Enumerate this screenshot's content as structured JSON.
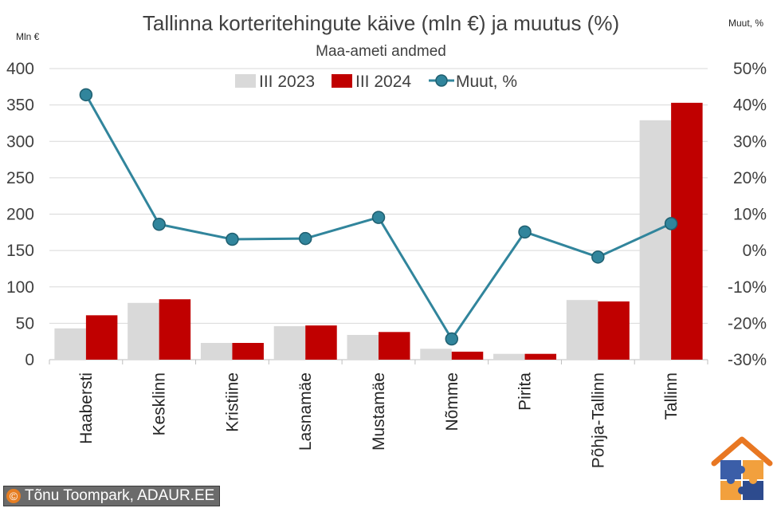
{
  "chart_data": {
    "type": "bar",
    "title": "Tallinna korteritehingute käive (mln €) ja muutus (%)",
    "subtitle": "Maa-ameti andmed",
    "ylabel": "Mln €",
    "y2label": "Muut, %",
    "categories": [
      "Haabersti",
      "Kesklinn",
      "Kristiine",
      "Lasnamäe",
      "Mustamäe",
      "Nõmme",
      "Pirita",
      "Põhja-Tallinn",
      "Tallinn"
    ],
    "series": [
      {
        "name": "III 2023",
        "type": "bar",
        "color": "#d9d9d9",
        "values": [
          43,
          78,
          23,
          46,
          34,
          15,
          8,
          82,
          329
        ]
      },
      {
        "name": "III 2024",
        "type": "bar",
        "color": "#c00000",
        "values": [
          61,
          83,
          23,
          47,
          38,
          11,
          8,
          80,
          353
        ]
      },
      {
        "name": "Muut, %",
        "type": "line",
        "axis": "right",
        "color": "#31859c",
        "values": [
          42.8,
          7.2,
          3.1,
          3.3,
          9.1,
          -24.3,
          5.1,
          -1.8,
          7.4
        ]
      }
    ],
    "ylim": [
      0,
      400
    ],
    "yticks": [
      0,
      50,
      100,
      150,
      200,
      250,
      300,
      350,
      400
    ],
    "y2lim": [
      -30,
      50
    ],
    "y2ticks": [
      "-30%",
      "-20%",
      "-10%",
      "0%",
      "10%",
      "20%",
      "30%",
      "40%",
      "50%"
    ],
    "y2tick_values": [
      -30,
      -20,
      -10,
      0,
      10,
      20,
      30,
      40,
      50
    ],
    "grid": true,
    "legend_position": "top-center"
  },
  "credit": {
    "symbol": "©",
    "text": "Tõnu Toompark, ADAUR.EE"
  },
  "logo": {
    "icon": "house-puzzle-icon",
    "colors": {
      "roof": "#e87722",
      "blue": "#3b5ea8",
      "orange": "#f2a03d",
      "dark": "#2d4b8e"
    }
  }
}
